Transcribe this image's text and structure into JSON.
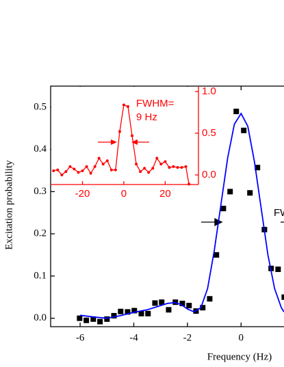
{
  "chart_data": [
    {
      "type": "scatter",
      "xlabel": "Frequency (Hz)",
      "ylabel": "Excitation probability",
      "xlim": [
        -7.1,
        1.6
      ],
      "ylim": [
        -0.02,
        0.55
      ],
      "xticks": [
        -6,
        -4,
        -2,
        0
      ],
      "yticks": [
        {
          "value": 0,
          "label": "0.0"
        },
        {
          "value": 0.1,
          "label": "0.1"
        },
        {
          "value": 0.2,
          "label": "0.2"
        },
        {
          "value": 0.3,
          "label": "0.3"
        },
        {
          "value": 0.4,
          "label": "0.4"
        },
        {
          "value": 0.5,
          "label": "0.5"
        }
      ],
      "series": [
        {
          "mode": "markers",
          "color": "#000000",
          "x": [
            -6.02,
            -5.77,
            -5.51,
            -5.26,
            -5.0,
            -4.74,
            -4.49,
            -4.23,
            -3.98,
            -3.72,
            -3.47,
            -3.21,
            -2.96,
            -2.7,
            -2.45,
            -2.19,
            -1.94,
            -1.68,
            -1.43,
            -1.17,
            -0.92,
            -0.66,
            -0.41,
            -0.18,
            0.1,
            0.33,
            0.61,
            0.87,
            1.12,
            1.38,
            1.61
          ],
          "values": [
            0.0,
            -0.005,
            -0.002,
            -0.008,
            -0.002,
            0.006,
            0.016,
            0.015,
            0.018,
            0.011,
            0.011,
            0.036,
            0.038,
            0.02,
            0.038,
            0.035,
            0.03,
            0.017,
            0.025,
            0.046,
            0.15,
            0.26,
            0.3,
            0.49,
            0.445,
            0.297,
            0.357,
            0.21,
            0.118,
            0.116,
            0.05
          ]
        },
        {
          "mode": "line",
          "color": "#0000ff",
          "x": [
            -6,
            -5.5,
            -5,
            -4.5,
            -4,
            -3.5,
            -3,
            -2.75,
            -2.5,
            -2.25,
            -2,
            -1.75,
            -1.5,
            -1.25,
            -1,
            -0.75,
            -0.5,
            -0.25,
            0,
            0.25,
            0.5,
            0.75,
            1,
            1.25,
            1.5,
            1.6
          ],
          "values": [
            0.007,
            0.003,
            0.0,
            0.006,
            0.014,
            0.02,
            0.03,
            0.035,
            0.037,
            0.033,
            0.022,
            0.015,
            0.025,
            0.07,
            0.16,
            0.27,
            0.38,
            0.46,
            0.485,
            0.455,
            0.37,
            0.26,
            0.15,
            0.07,
            0.025,
            0.015
          ]
        }
      ],
      "annotations": [
        {
          "text": "FW"
        }
      ]
    },
    {
      "type": "line",
      "color": "#ff0000",
      "xlim": [
        -35.4,
        36.1
      ],
      "ylim": [
        -0.115,
        1.065
      ],
      "xticks": [
        -20,
        0,
        20
      ],
      "yticks": [
        {
          "value": 0,
          "label": "0.0"
        },
        {
          "value": 0.5,
          "label": "0.5"
        },
        {
          "value": 1,
          "label": "1.0"
        }
      ],
      "x": [
        -34,
        -32,
        -30,
        -28,
        -26,
        -24,
        -22,
        -20,
        -18,
        -16,
        -14,
        -12,
        -10,
        -8,
        -6,
        -4,
        -2,
        0,
        2,
        4,
        6,
        8,
        10,
        12,
        14,
        16,
        18,
        20,
        22,
        24,
        26,
        28,
        30,
        31.5
      ],
      "values": [
        0.05,
        0.06,
        0.0,
        0.04,
        0.1,
        0.07,
        0.03,
        0.05,
        0.1,
        0.02,
        0.1,
        0.2,
        0.13,
        0.17,
        0.06,
        0.06,
        0.52,
        0.84,
        0.82,
        0.47,
        0.13,
        0.04,
        0.08,
        0.03,
        0.08,
        0.2,
        0.13,
        0.16,
        0.09,
        0.1,
        0.09,
        0.09,
        0.1,
        -0.11
      ],
      "annotations": [
        {
          "text": "FWHM="
        },
        {
          "text": "9 Hz"
        }
      ]
    }
  ]
}
